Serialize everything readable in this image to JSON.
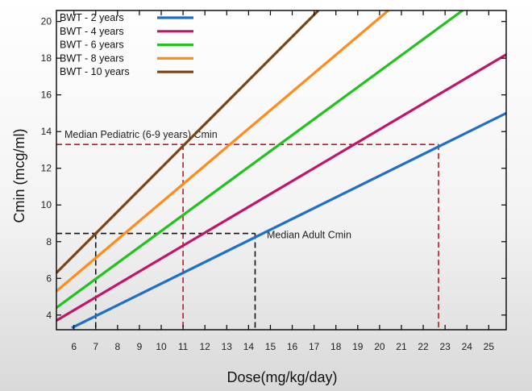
{
  "chart_data": {
    "type": "line",
    "xlabel": "Dose(mg/kg/day)",
    "ylabel": "Cmin  (mcg/ml)",
    "xlim": [
      5.2,
      25.8
    ],
    "ylim": [
      3.2,
      20.6
    ],
    "xticks": [
      6,
      7,
      8,
      9,
      10,
      11,
      12,
      13,
      14,
      15,
      16,
      17,
      18,
      19,
      20,
      21,
      22,
      23,
      24,
      25
    ],
    "yticks": [
      4,
      6,
      8,
      10,
      12,
      14,
      16,
      18,
      20
    ],
    "grid": false,
    "legend_position": "top-left",
    "series": [
      {
        "name": "BWT - 2 years",
        "color": "#1f6fc9",
        "x": [
          5.9,
          25.8
        ],
        "y": [
          3.3,
          15.0
        ]
      },
      {
        "name": "BWT - 4 years",
        "color": "#c0156a",
        "x": [
          5.2,
          25.8
        ],
        "y": [
          3.7,
          18.2
        ]
      },
      {
        "name": "BWT - 6 years",
        "color": "#22c11e",
        "x": [
          5.2,
          23.8
        ],
        "y": [
          4.4,
          20.6
        ]
      },
      {
        "name": "BWT - 8 years",
        "color": "#ff8c1a",
        "x": [
          5.2,
          20.4
        ],
        "y": [
          5.3,
          20.6
        ]
      },
      {
        "name": "BWT - 10 years",
        "color": "#7a4416",
        "x": [
          5.2,
          17.2
        ],
        "y": [
          6.3,
          20.6
        ]
      }
    ],
    "reference_lines": [
      {
        "label": "Median Pediatric (6-9 years) Cmin",
        "color": "#b81c24",
        "y": 13.3,
        "x_start": 5.2,
        "x_end": 22.7,
        "drops": [
          11.0,
          22.7
        ]
      },
      {
        "label": "Median Adult Cmin",
        "color": "#111111",
        "y": 8.45,
        "x_start": 5.2,
        "x_end": 14.3,
        "drops": [
          7.0,
          14.3
        ]
      }
    ]
  }
}
